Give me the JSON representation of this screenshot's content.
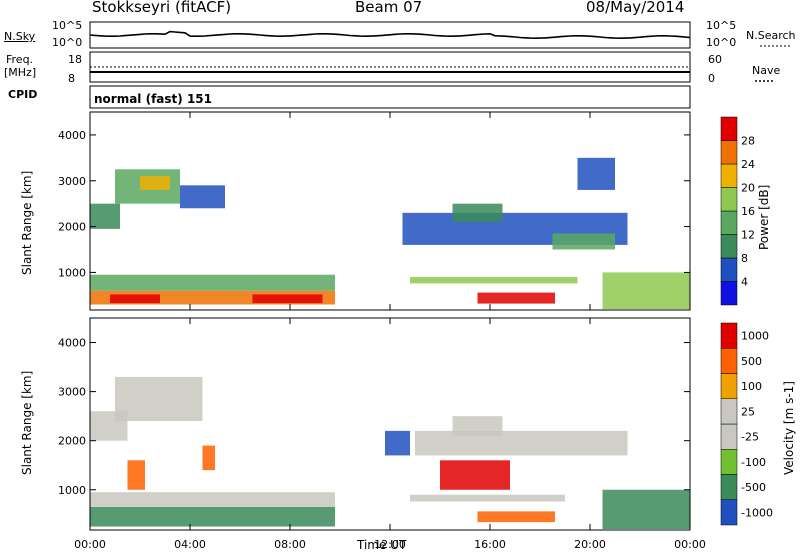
{
  "header": {
    "station": "Stokkseyri (fitACF)",
    "beam": "Beam 07",
    "date": "08/May/2014"
  },
  "noise_panel": {
    "left_label": "N.Sky",
    "left_ticks": [
      "10^5",
      "10^0"
    ],
    "right_ticks": [
      "10^5",
      "10^0"
    ],
    "right_label": "N.Search"
  },
  "freq_panel": {
    "left_label_1": "Freq.",
    "left_label_2": "[MHz]",
    "left_ticks": [
      "18",
      "8"
    ],
    "right_ticks": [
      "60",
      "0"
    ],
    "right_label": "Nave"
  },
  "cpid_panel": {
    "left_label": "CPID",
    "mode_text": "normal (fast) 151"
  },
  "colors": {
    "power": [
      "#1010e0",
      "#2050c0",
      "#3a8a5a",
      "#5aa860",
      "#8ec850",
      "#f0b000",
      "#f07000",
      "#e00000"
    ],
    "velocity": [
      "#e00000",
      "#ff6000",
      "#f0a000",
      "#c8c8c0",
      "#c8c8c0",
      "#70c030",
      "#3a8a5a",
      "#2050c0"
    ]
  },
  "chart_data": [
    {
      "type": "heatmap",
      "parameter": "Power",
      "ylabel": "Slant Range [km]",
      "xlim": [
        0,
        24
      ],
      "ylim": [
        180,
        4500
      ],
      "y_ticks": [
        "1000",
        "2000",
        "3000",
        "4000"
      ],
      "colorbar": {
        "label": "Power [dB]",
        "range": [
          0,
          32
        ],
        "ticks": [
          "4",
          "8",
          "12",
          "16",
          "20",
          "24",
          "28"
        ]
      },
      "patches": [
        {
          "t0": 0.0,
          "t1": 9.8,
          "r0": 300,
          "r1": 600,
          "level": 6
        },
        {
          "t0": 0.8,
          "t1": 2.8,
          "r0": 330,
          "r1": 520,
          "level": 7
        },
        {
          "t0": 6.5,
          "t1": 9.3,
          "r0": 330,
          "r1": 520,
          "level": 7
        },
        {
          "t0": 0.0,
          "t1": 9.8,
          "r0": 600,
          "r1": 950,
          "level": 3
        },
        {
          "t0": 0.0,
          "t1": 1.2,
          "r0": 1950,
          "r1": 2500,
          "level": 2
        },
        {
          "t0": 1.0,
          "t1": 3.6,
          "r0": 2500,
          "r1": 3250,
          "level": 3
        },
        {
          "t0": 2.0,
          "t1": 3.2,
          "r0": 2800,
          "r1": 3100,
          "level": 5
        },
        {
          "t0": 3.6,
          "t1": 5.4,
          "r0": 2400,
          "r1": 2900,
          "level": 1
        },
        {
          "t0": 15.5,
          "t1": 18.6,
          "r0": 320,
          "r1": 560,
          "level": 7
        },
        {
          "t0": 12.8,
          "t1": 19.5,
          "r0": 760,
          "r1": 900,
          "level": 4
        },
        {
          "t0": 12.5,
          "t1": 21.5,
          "r0": 1600,
          "r1": 2300,
          "level": 1
        },
        {
          "t0": 14.5,
          "t1": 16.5,
          "r0": 2100,
          "r1": 2500,
          "level": 2
        },
        {
          "t0": 18.5,
          "t1": 21.0,
          "r0": 1500,
          "r1": 1850,
          "level": 3
        },
        {
          "t0": 20.5,
          "t1": 24.0,
          "r0": 200,
          "r1": 1000,
          "level": 4
        },
        {
          "t0": 19.5,
          "t1": 21.0,
          "r0": 2800,
          "r1": 3500,
          "level": 1
        }
      ]
    },
    {
      "type": "heatmap",
      "parameter": "Velocity",
      "ylabel": "Slant Range [km]",
      "xlabel": "Time UT",
      "xlim": [
        0,
        24
      ],
      "x_ticks": [
        "00:00",
        "04:00",
        "08:00",
        "12:00",
        "16:00",
        "20:00",
        "00:00"
      ],
      "ylim": [
        180,
        4500
      ],
      "y_ticks": [
        "1000",
        "2000",
        "3000",
        "4000"
      ],
      "colorbar": {
        "label": "Velocity [m s-1]",
        "ticks": [
          "1000",
          "500",
          "100",
          "25",
          "-25",
          "-100",
          "-500",
          "-1000"
        ]
      },
      "patches": [
        {
          "t0": 0.0,
          "t1": 9.8,
          "r0": 250,
          "r1": 650,
          "level": 6
        },
        {
          "t0": 0.0,
          "t1": 9.8,
          "r0": 650,
          "r1": 950,
          "level": 4
        },
        {
          "t0": 1.0,
          "t1": 4.5,
          "r0": 2400,
          "r1": 3300,
          "level": 3
        },
        {
          "t0": 0.0,
          "t1": 1.5,
          "r0": 2000,
          "r1": 2600,
          "level": 4
        },
        {
          "t0": 1.5,
          "t1": 2.2,
          "r0": 1000,
          "r1": 1600,
          "level": 1
        },
        {
          "t0": 4.5,
          "t1": 5.0,
          "r0": 1400,
          "r1": 1900,
          "level": 1
        },
        {
          "t0": 15.5,
          "t1": 18.6,
          "r0": 340,
          "r1": 560,
          "level": 1
        },
        {
          "t0": 14.0,
          "t1": 16.8,
          "r0": 1000,
          "r1": 1600,
          "level": 0
        },
        {
          "t0": 13.0,
          "t1": 21.5,
          "r0": 1700,
          "r1": 2200,
          "level": 3
        },
        {
          "t0": 14.5,
          "t1": 16.5,
          "r0": 2100,
          "r1": 2500,
          "level": 3
        },
        {
          "t0": 11.8,
          "t1": 12.8,
          "r0": 1700,
          "r1": 2200,
          "level": 7
        },
        {
          "t0": 20.5,
          "t1": 24.0,
          "r0": 200,
          "r1": 1000,
          "level": 6
        },
        {
          "t0": 12.8,
          "t1": 19.0,
          "r0": 760,
          "r1": 900,
          "level": 3
        }
      ]
    }
  ]
}
